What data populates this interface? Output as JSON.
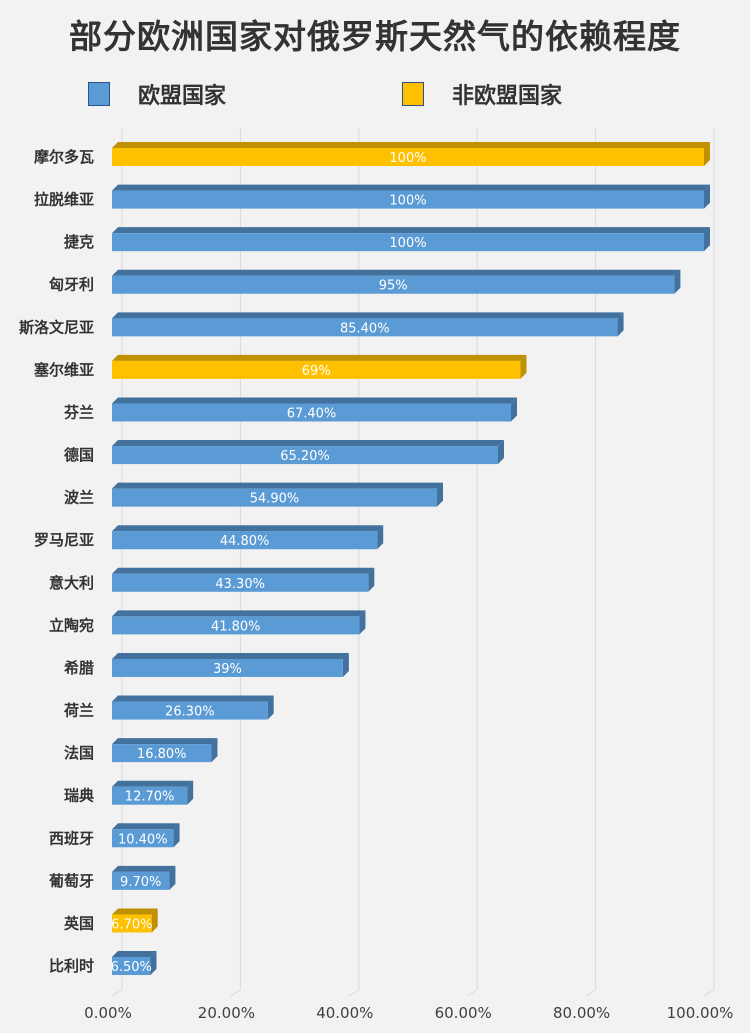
{
  "chart_data": {
    "type": "bar",
    "orientation": "horizontal",
    "title": "部分欧洲国家对俄罗斯天然气的依赖程度",
    "legend": [
      {
        "name": "欧盟国家",
        "color": "#5b9bd5"
      },
      {
        "name": "非欧盟国家",
        "color": "#ffc000"
      }
    ],
    "legend_position": "top",
    "xlim": [
      0,
      100
    ],
    "xticks": [
      "0.00%",
      "20.00%",
      "40.00%",
      "60.00%",
      "80.00%",
      "100.00%"
    ],
    "grid": true,
    "categories": [
      "摩尔多瓦",
      "拉脱维亚",
      "捷克",
      "匈牙利",
      "斯洛文尼亚",
      "塞尔维亚",
      "芬兰",
      "德国",
      "波兰",
      "罗马尼亚",
      "意大利",
      "立陶宛",
      "希腊",
      "荷兰",
      "法国",
      "瑞典",
      "西班牙",
      "葡萄牙",
      "英国",
      "比利时"
    ],
    "values": [
      100,
      100,
      100,
      95,
      85.4,
      69,
      67.4,
      65.2,
      54.9,
      44.8,
      43.3,
      41.8,
      39,
      26.3,
      16.8,
      12.7,
      10.4,
      9.7,
      6.7,
      6.5
    ],
    "labels": [
      "100%",
      "100%",
      "100%",
      "95%",
      "85.40%",
      "69%",
      "67.40%",
      "65.20%",
      "54.90%",
      "44.80%",
      "43.30%",
      "41.80%",
      "39%",
      "26.30%",
      "16.80%",
      "12.70%",
      "10.40%",
      "9.70%",
      "6.70%",
      "6.50%"
    ],
    "group": [
      "非欧盟国家",
      "欧盟国家",
      "欧盟国家",
      "欧盟国家",
      "欧盟国家",
      "非欧盟国家",
      "欧盟国家",
      "欧盟国家",
      "欧盟国家",
      "欧盟国家",
      "欧盟国家",
      "欧盟国家",
      "欧盟国家",
      "欧盟国家",
      "欧盟国家",
      "欧盟国家",
      "欧盟国家",
      "欧盟国家",
      "非欧盟国家",
      "欧盟国家"
    ]
  }
}
